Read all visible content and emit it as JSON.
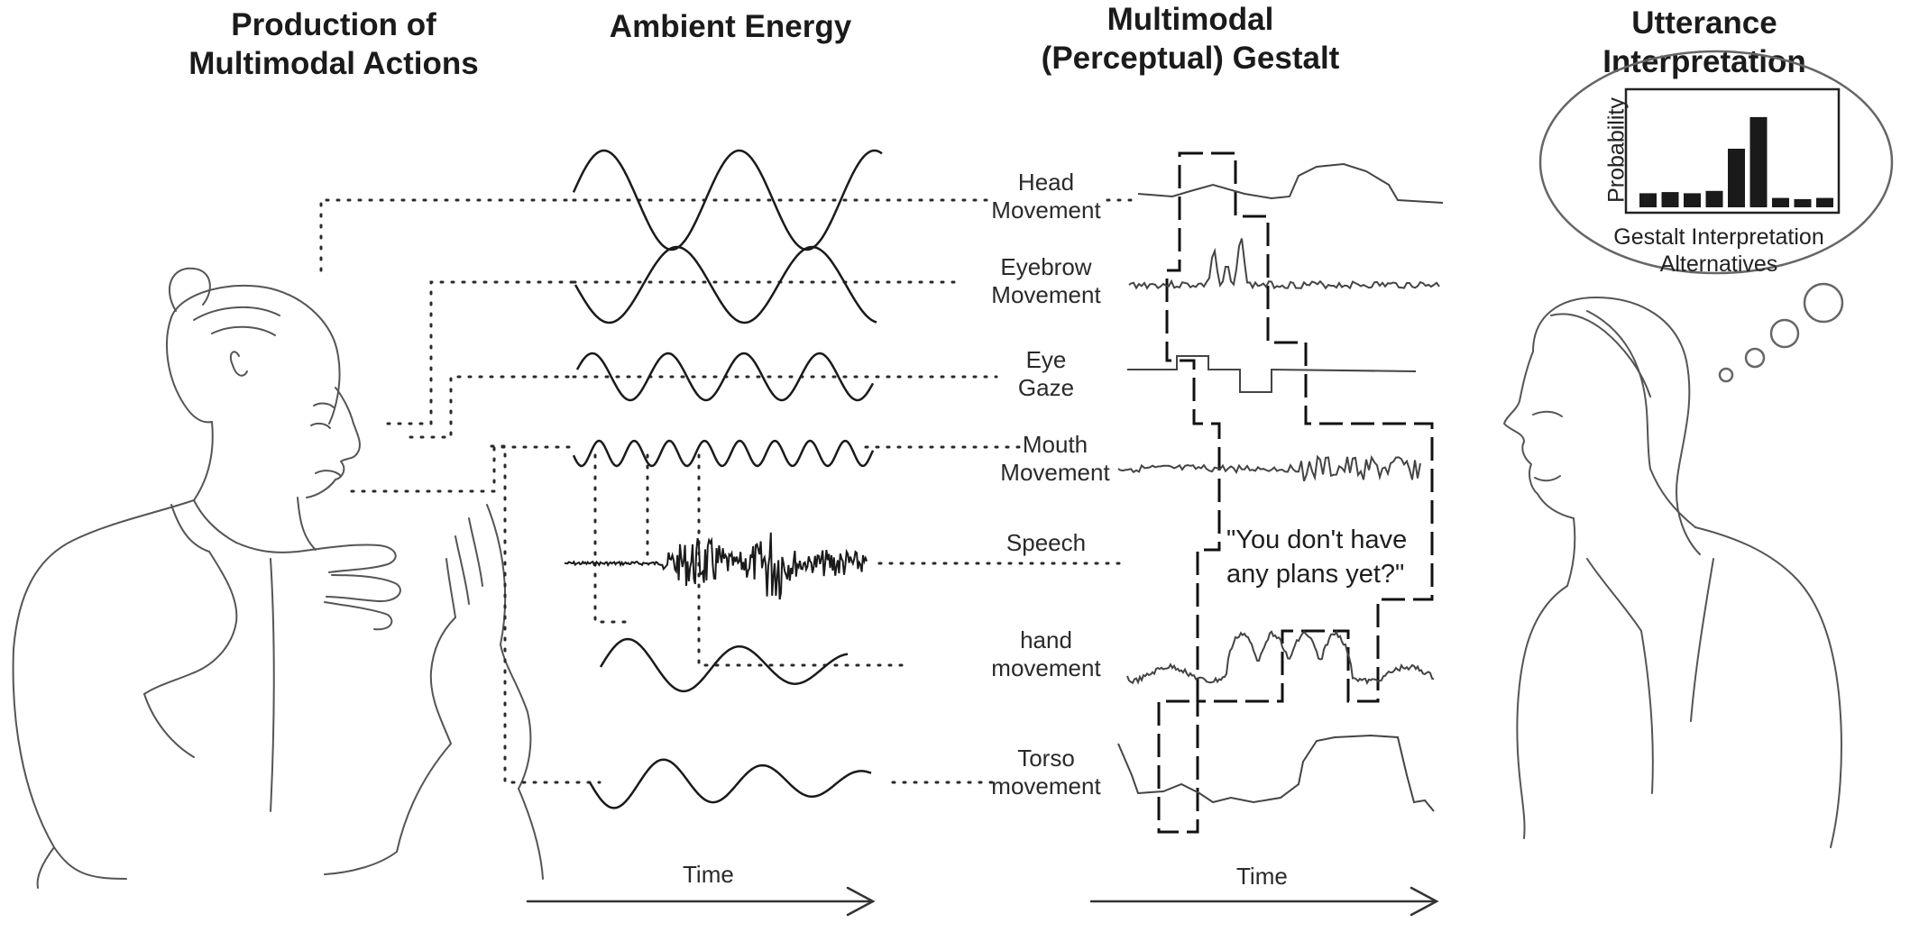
{
  "headers": {
    "production": [
      "Production of",
      "Multimodal Actions"
    ],
    "ambient": "Ambient Energy",
    "gestalt": [
      "Multimodal",
      "(Perceptual) Gestalt"
    ],
    "utterance": [
      "Utterance",
      "Interpretation"
    ]
  },
  "channels": [
    {
      "key": "head",
      "lines": [
        "Head",
        "Movement"
      ]
    },
    {
      "key": "eyebrow",
      "lines": [
        "Eyebrow",
        "Movement"
      ]
    },
    {
      "key": "eye",
      "lines": [
        "Eye",
        "Gaze"
      ]
    },
    {
      "key": "mouth",
      "lines": [
        "Mouth",
        "Movement"
      ]
    },
    {
      "key": "speech",
      "lines": [
        "Speech"
      ]
    },
    {
      "key": "hand",
      "lines": [
        "hand",
        "movement"
      ]
    },
    {
      "key": "torso",
      "lines": [
        "Torso",
        "movement"
      ]
    }
  ],
  "time_label_left": "Time",
  "time_label_right": "Time",
  "quote": [
    "\"You don't have",
    "any plans yet?\""
  ],
  "bubble": {
    "ylabel": "Probability",
    "caption": [
      "Gestalt Interpretation",
      "Alternatives"
    ],
    "bar_values": [
      0.12,
      0.13,
      0.12,
      0.14,
      0.5,
      0.77,
      0.08,
      0.07,
      0.08
    ]
  }
}
